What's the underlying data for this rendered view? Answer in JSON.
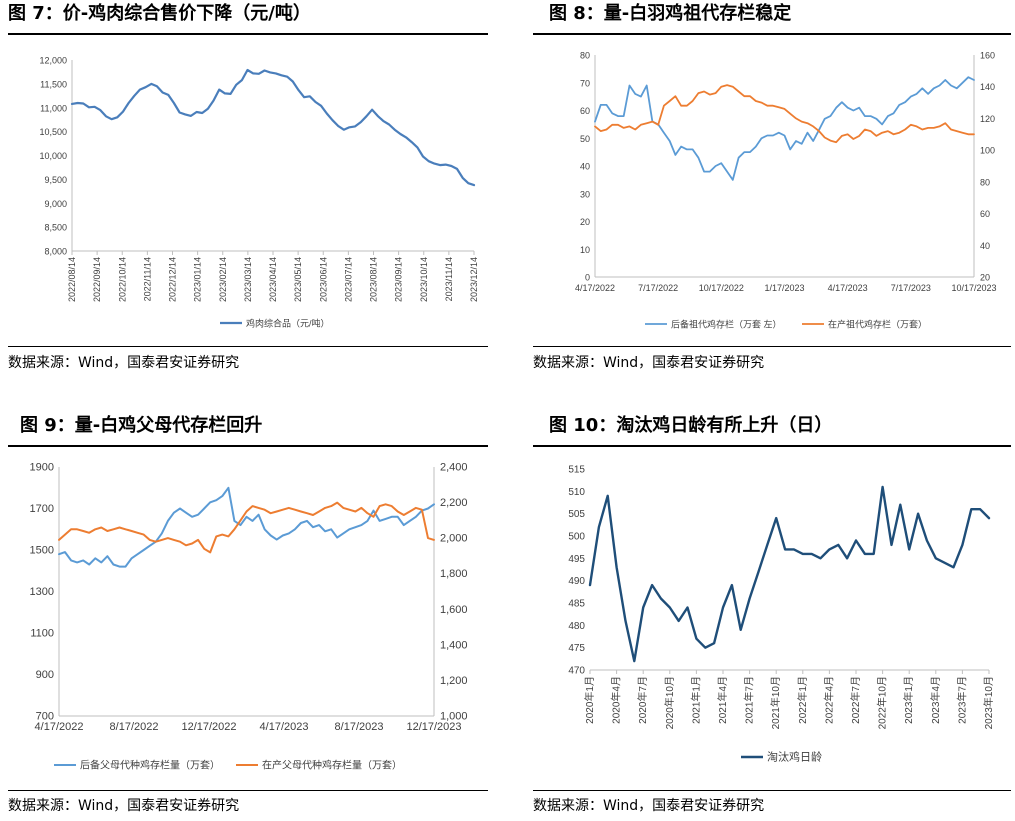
{
  "chart_data": [
    {
      "id": "fig7",
      "type": "line",
      "title": "图 7：价-鸡肉综合售价下降（元/吨）",
      "source": "数据来源：Wind，国泰君安证券研究",
      "ylim": [
        8000,
        12000
      ],
      "yticks": [
        "8,000",
        "8,500",
        "9,000",
        "9,500",
        "10,000",
        "10,500",
        "11,000",
        "11,500",
        "12,000"
      ],
      "xticks": [
        "2022/08/14",
        "2022/09/14",
        "2022/10/14",
        "2022/11/14",
        "2022/12/14",
        "2023/01/14",
        "2023/02/14",
        "2023/03/14",
        "2023/04/14",
        "2023/05/14",
        "2023/06/14",
        "2023/07/14",
        "2023/08/14",
        "2023/09/14",
        "2023/10/14",
        "2023/11/14",
        "2023/12/14"
      ],
      "series": [
        {
          "name": "鸡肉综合品（元/吨）",
          "color": "#4a7ebb",
          "values": [
            11080,
            11100,
            11090,
            11010,
            11020,
            10950,
            10820,
            10760,
            10800,
            10920,
            11100,
            11250,
            11380,
            11430,
            11500,
            11450,
            11320,
            11270,
            11100,
            10900,
            10860,
            10830,
            10910,
            10890,
            10980,
            11150,
            11380,
            11300,
            11290,
            11480,
            11580,
            11790,
            11720,
            11710,
            11780,
            11740,
            11720,
            11680,
            11650,
            11550,
            11370,
            11220,
            11240,
            11120,
            11040,
            10880,
            10740,
            10620,
            10540,
            10590,
            10610,
            10700,
            10820,
            10960,
            10830,
            10720,
            10650,
            10540,
            10450,
            10380,
            10280,
            10170,
            9980,
            9880,
            9830,
            9800,
            9810,
            9780,
            9720,
            9530,
            9420,
            9380
          ]
        }
      ]
    },
    {
      "id": "fig8",
      "type": "line",
      "title": "图 8：量-白羽鸡祖代存栏稳定",
      "source": "数据来源：Wind，国泰君安证券研究",
      "ylim_left": [
        0,
        80
      ],
      "ylim_right": [
        20,
        160
      ],
      "yticks_left": [
        "0",
        "10",
        "20",
        "30",
        "40",
        "50",
        "60",
        "70",
        "80"
      ],
      "yticks_right": [
        "20",
        "40",
        "60",
        "80",
        "100",
        "120",
        "140",
        "160"
      ],
      "xticks": [
        "4/17/2022",
        "7/17/2022",
        "10/17/2022",
        "1/17/2023",
        "4/17/2023",
        "7/17/2023",
        "10/17/2023"
      ],
      "series": [
        {
          "name": "后备祖代鸡存栏（万套 左）",
          "axis": "left",
          "color": "#5b9bd5",
          "values": [
            56,
            62,
            62,
            59,
            58,
            58,
            69,
            66,
            65,
            69,
            56,
            55,
            52,
            49,
            44,
            47,
            46,
            46,
            43,
            38,
            38,
            40,
            41,
            38,
            35,
            43,
            45,
            45,
            47,
            50,
            51,
            51,
            52,
            51,
            46,
            49,
            48,
            52,
            49,
            53,
            57,
            58,
            61,
            63,
            61,
            60,
            61,
            58,
            58,
            57,
            55,
            58,
            59,
            62,
            63,
            65,
            66,
            68,
            66,
            68,
            69,
            71,
            69,
            68,
            70,
            72,
            71
          ]
        },
        {
          "name": "在产祖代鸡存栏（万套）",
          "axis": "right",
          "color": "#ed7d31",
          "values": [
            115,
            112,
            113,
            116,
            116,
            114,
            115,
            113,
            116,
            117,
            118,
            116,
            128,
            131,
            134,
            128,
            128,
            131,
            136,
            137,
            135,
            136,
            140,
            141,
            140,
            137,
            134,
            134,
            131,
            130,
            128,
            128,
            127,
            126,
            123,
            120,
            118,
            117,
            115,
            112,
            108,
            106,
            105,
            109,
            110,
            107,
            109,
            113,
            112,
            109,
            111,
            112,
            110,
            111,
            113,
            116,
            115,
            113,
            114,
            114,
            115,
            117,
            113,
            112,
            111,
            110,
            110
          ]
        }
      ]
    },
    {
      "id": "fig9",
      "type": "line",
      "title": "图 9：量-白鸡父母代存栏回升",
      "source": "数据来源：Wind，国泰君安证券研究",
      "ylim_left": [
        700,
        1900
      ],
      "ylim_right": [
        1000,
        2400
      ],
      "yticks_left": [
        "700",
        "900",
        "1100",
        "1300",
        "1500",
        "1700",
        "1900"
      ],
      "yticks_right": [
        "1,000",
        "1,200",
        "1,400",
        "1,600",
        "1,800",
        "2,000",
        "2,200",
        "2,400"
      ],
      "xticks": [
        "4/17/2022",
        "8/17/2022",
        "12/17/2022",
        "4/17/2023",
        "8/17/2023",
        "12/17/2023"
      ],
      "series": [
        {
          "name": "后备父母代种鸡存栏量（万套）",
          "axis": "left",
          "color": "#5b9bd5",
          "values": [
            1480,
            1490,
            1450,
            1440,
            1450,
            1430,
            1460,
            1440,
            1470,
            1430,
            1420,
            1420,
            1460,
            1480,
            1500,
            1520,
            1540,
            1580,
            1640,
            1680,
            1700,
            1680,
            1660,
            1670,
            1700,
            1730,
            1740,
            1760,
            1800,
            1640,
            1620,
            1660,
            1640,
            1670,
            1600,
            1570,
            1550,
            1570,
            1580,
            1600,
            1630,
            1640,
            1610,
            1620,
            1590,
            1600,
            1560,
            1580,
            1600,
            1610,
            1620,
            1640,
            1690,
            1640,
            1650,
            1660,
            1660,
            1620,
            1640,
            1660,
            1690,
            1700,
            1720
          ]
        },
        {
          "name": "在产父母代种鸡存栏量（万套）",
          "axis": "right",
          "color": "#ed7d31",
          "values": [
            1990,
            2020,
            2050,
            2050,
            2040,
            2030,
            2050,
            2060,
            2040,
            2050,
            2060,
            2050,
            2040,
            2030,
            2020,
            1990,
            1980,
            1990,
            2000,
            1990,
            1980,
            1960,
            1970,
            1990,
            1940,
            1920,
            2010,
            2020,
            2010,
            2050,
            2100,
            2150,
            2180,
            2170,
            2160,
            2140,
            2150,
            2160,
            2170,
            2160,
            2150,
            2140,
            2130,
            2150,
            2170,
            2180,
            2200,
            2170,
            2160,
            2150,
            2170,
            2140,
            2120,
            2180,
            2190,
            2180,
            2150,
            2130,
            2150,
            2170,
            2160,
            2000,
            1990
          ]
        }
      ]
    },
    {
      "id": "fig10",
      "type": "line",
      "title": "图 10：淘汰鸡日龄有所上升（日）",
      "source": "数据来源：Wind，国泰君安证券研究",
      "ylim": [
        470,
        515
      ],
      "yticks": [
        "470",
        "475",
        "480",
        "485",
        "490",
        "495",
        "500",
        "505",
        "510",
        "515"
      ],
      "xticks": [
        "2020年1月",
        "2020年4月",
        "2020年7月",
        "2020年10月",
        "2021年1月",
        "2021年4月",
        "2021年7月",
        "2021年10月",
        "2022年1月",
        "2022年4月",
        "2022年7月",
        "2022年10月",
        "2023年1月",
        "2023年4月",
        "2023年7月",
        "2023年10月"
      ],
      "series": [
        {
          "name": "淘汰鸡日龄",
          "color": "#1f4e79",
          "values": [
            489,
            502,
            509,
            493,
            481,
            472,
            484,
            489,
            486,
            484,
            481,
            484,
            477,
            475,
            476,
            484,
            489,
            479,
            486,
            492,
            498,
            504,
            497,
            497,
            496,
            496,
            495,
            497,
            498,
            495,
            499,
            496,
            496,
            511,
            498,
            507,
            497,
            505,
            499,
            495,
            494,
            493,
            498,
            506,
            506,
            504
          ]
        }
      ]
    }
  ]
}
